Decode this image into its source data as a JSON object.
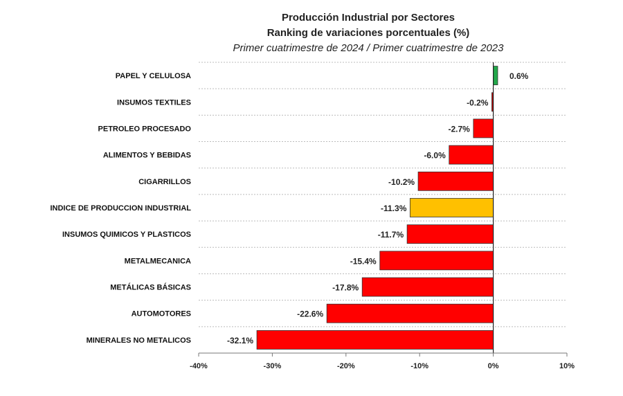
{
  "chart_data": {
    "type": "bar",
    "orientation": "horizontal",
    "title": "Producción Industrial por Sectores",
    "subtitle": "Ranking de variaciones porcentuales (%)",
    "subtitle2": "Primer cuatrimestre de 2024 / Primer cuatrimestre de 2023",
    "categories": [
      "PAPEL Y CELULOSA",
      "INSUMOS TEXTILES",
      "PETROLEO PROCESADO",
      "ALIMENTOS Y BEBIDAS",
      "CIGARRILLOS",
      "INDICE DE PRODUCCION INDUSTRIAL",
      "INSUMOS QUIMICOS Y PLASTICOS",
      "METALMECANICA",
      "METÁLICAS BÁSICAS",
      "AUTOMOTORES",
      "MINERALES NO METALICOS"
    ],
    "values": [
      0.6,
      -0.2,
      -2.7,
      -6.0,
      -10.2,
      -11.3,
      -11.7,
      -15.4,
      -17.8,
      -22.6,
      -32.1
    ],
    "data_labels": [
      "0.6%",
      "-0.2%",
      "-2.7%",
      "-6.0%",
      "-10.2%",
      "-11.3%",
      "-11.7%",
      "-15.4%",
      "-17.8%",
      "-22.6%",
      "-32.1%"
    ],
    "colors": [
      "#22a84a",
      "#c00000",
      "#ff0000",
      "#ff0000",
      "#ff0000",
      "#ffc000",
      "#ff0000",
      "#ff0000",
      "#ff0000",
      "#ff0000",
      "#ff0000"
    ],
    "xlim": [
      -40,
      10
    ],
    "xticks": [
      -40,
      -30,
      -20,
      -10,
      0,
      10
    ],
    "xtick_labels": [
      "-40%",
      "-30%",
      "-20%",
      "-10%",
      "0%",
      "10%"
    ],
    "grid": "horizontal dotted",
    "legend": "none"
  }
}
